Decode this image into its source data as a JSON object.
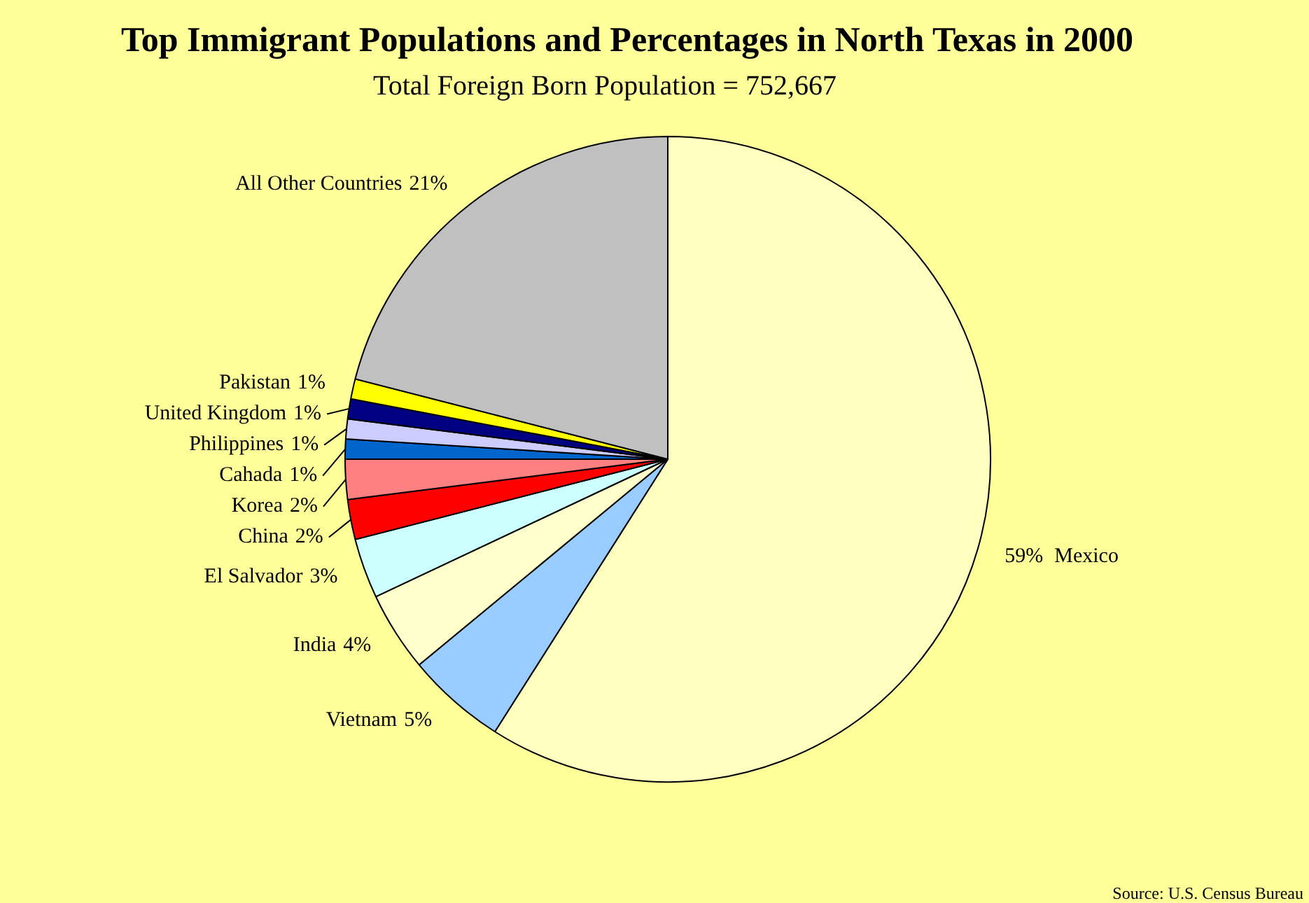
{
  "chart_data": {
    "type": "pie",
    "title": "Top Immigrant Populations and Percentages in North Texas in 2000",
    "subtitle": "Total Foreign Born Population = 752,667",
    "categories": [
      "Mexico",
      "Vietnam",
      "India",
      "El Salvador",
      "China",
      "Korea",
      "Cahada",
      "Philippines",
      "United Kingdom",
      "Pakistan",
      "All Other Countries"
    ],
    "values": [
      59,
      5,
      4,
      3,
      2,
      2,
      1,
      1,
      1,
      1,
      21
    ],
    "colors": [
      "#ffffc0",
      "#99ccff",
      "#ffffcc",
      "#ccffff",
      "#ff0000",
      "#ff8080",
      "#0066cc",
      "#ccccff",
      "#000080",
      "#ffff00",
      "#c0c0c0"
    ],
    "value_labels": [
      "59%",
      "5%",
      "4%",
      "3%",
      "2%",
      "2%",
      "1%",
      "1%",
      "1%",
      "1%",
      "21%"
    ],
    "legend": false,
    "annotations": [
      "Source: U.S. Census Bureau"
    ]
  }
}
